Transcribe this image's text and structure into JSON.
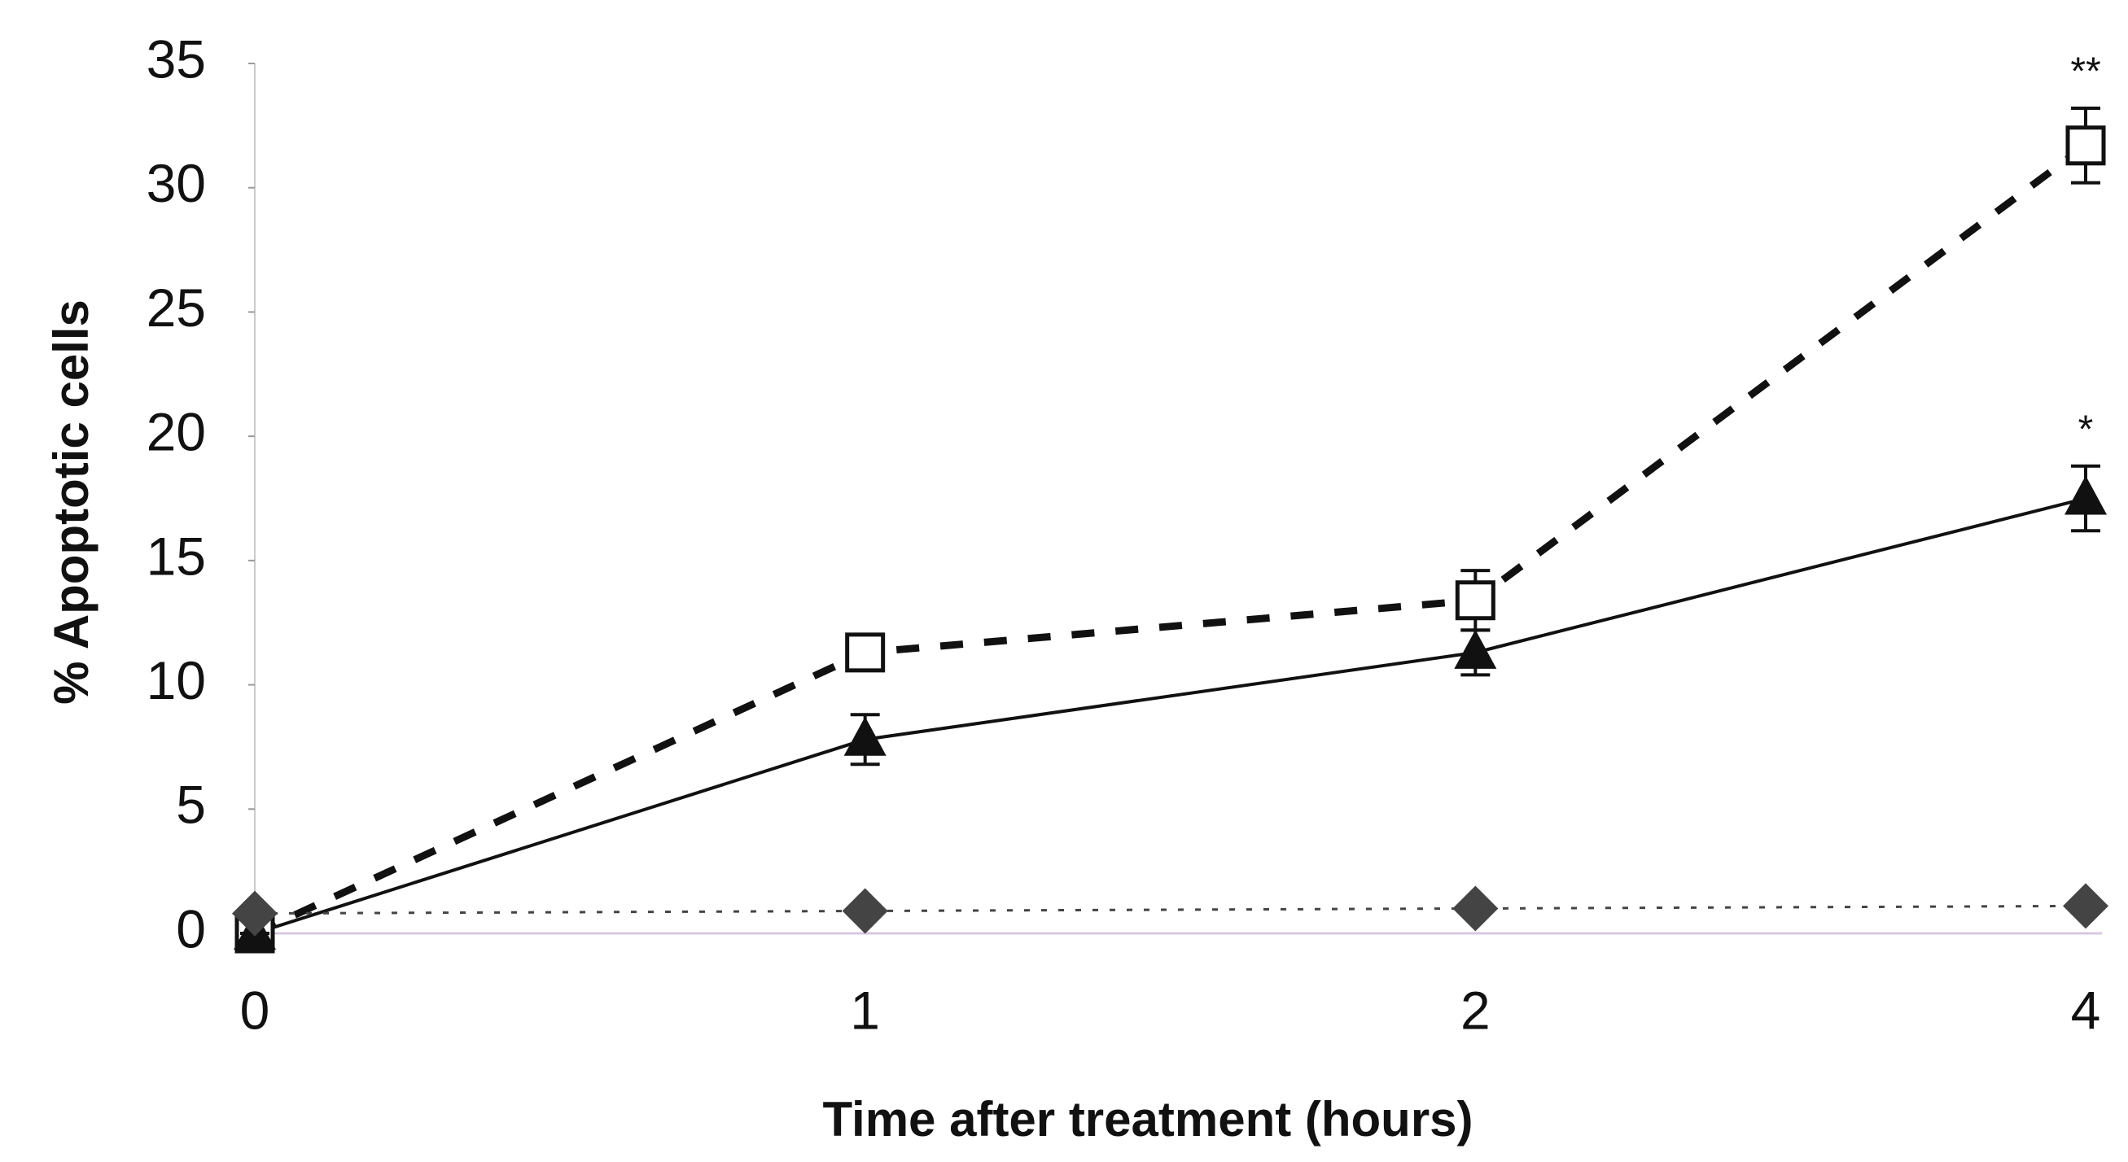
{
  "chart_data": {
    "type": "line",
    "y_label": "% Apoptotic cells",
    "x_label": "Time after treatment (hours)",
    "categories": [
      "0",
      "1",
      "2",
      "4"
    ],
    "series": [
      {
        "color": "#111111",
        "dash": "dashed",
        "marker": "square",
        "values": [
          0,
          11.3,
          13.4,
          31.7
        ],
        "errors": [
          0.5,
          0.7,
          1.2,
          1.5
        ]
      },
      {
        "color": "#111111",
        "dash": "solid",
        "marker": "triangle",
        "values": [
          0,
          7.8,
          11.3,
          17.5
        ],
        "errors": [
          0,
          1.0,
          0.9,
          1.3
        ]
      },
      {
        "color": "#444444",
        "dash": "dotted",
        "marker": "diamond",
        "values": [
          0.8,
          0.9,
          1.0,
          1.1
        ]
      }
    ],
    "annotations": [
      "**",
      "*"
    ],
    "ylim": [
      0,
      35
    ],
    "yticks": [
      0,
      5,
      10,
      15,
      20,
      25,
      30,
      35
    ]
  }
}
